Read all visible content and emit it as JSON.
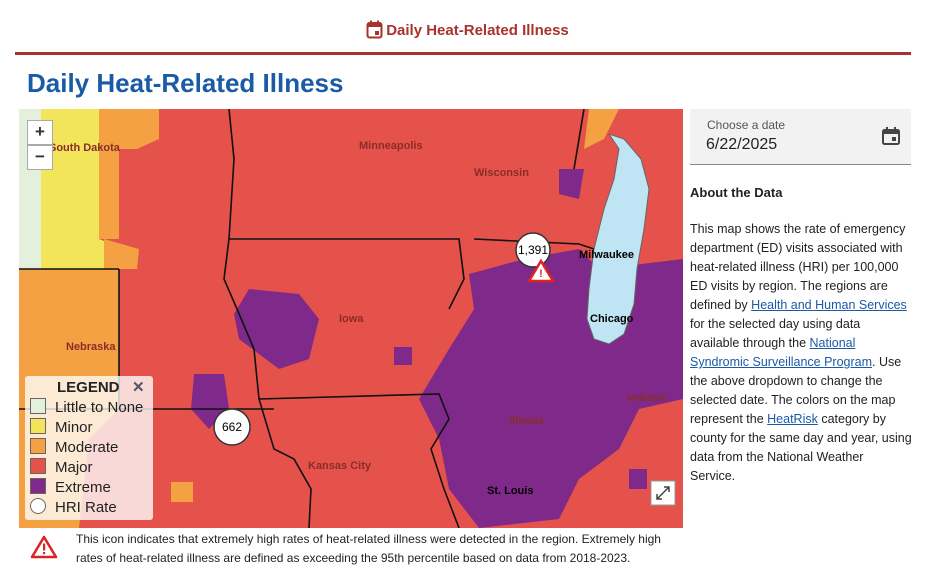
{
  "header": {
    "title": "Daily Heat-Related Illness"
  },
  "page": {
    "title": "Daily Heat-Related Illness"
  },
  "map": {
    "zoom_in": "+",
    "zoom_out": "−",
    "labels": [
      "South Dakota",
      "Minneapolis",
      "Wisconsin",
      "Milwaukee",
      "Chicago",
      "Iowa",
      "Nebraska",
      "Kansas City",
      "St. Louis",
      "Illinois",
      "Indiana"
    ],
    "markers": [
      "1,391",
      "662"
    ],
    "legend": {
      "title": "LEGEND",
      "close": "✕",
      "items": [
        "Little to None",
        "Minor",
        "Moderate",
        "Major",
        "Extreme",
        "HRI Rate"
      ]
    }
  },
  "date_picker": {
    "label": "Choose a date",
    "value": "6/22/2025"
  },
  "about": {
    "title": "About the Data",
    "segments": [
      "This map shows the rate of emergency department (ED) visits associated with heat-related illness (HRI) per 100,000 ED visits by region. The regions are defined by ",
      "Health and Human Services",
      " for the selected day using data available through the ",
      "National Syndromic Surveillance Program",
      ". Use the above dropdown to change the selected date. The colors on the map represent the ",
      "HeatRisk",
      " category by county for the same day and year, using data from the National Weather Service."
    ]
  },
  "footnote": "This icon indicates that extremely high rates of heat-related illness were detected in the region. Extremely high rates of heat-related illness are defined as exceeding the 95th percentile based on data from 2018-2023."
}
